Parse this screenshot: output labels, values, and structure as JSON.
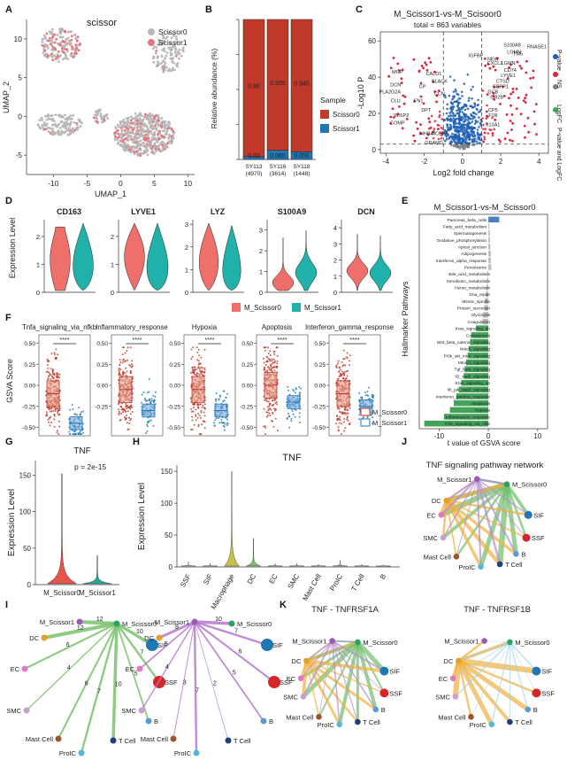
{
  "panel_labels": {
    "A": "A",
    "B": "B",
    "C": "C",
    "D": "D",
    "E": "E",
    "F": "F",
    "G": "G",
    "H": "H",
    "I": "I",
    "J": "J",
    "K": "K"
  },
  "colors": {
    "scissor0": "#b8b8b8",
    "scissor1": "#e8737b",
    "red": "#c0392b",
    "blue": "#1f78b4",
    "m0": "#ef6f6a",
    "m1": "#20b2aa",
    "green": "#44a35a",
    "grey": "#bdbdbd"
  },
  "chart_data": [
    {
      "id": "A",
      "type": "scatter",
      "title": "scissor",
      "xlabel": "UMAP_1",
      "ylabel": "UMAP_2",
      "xticks": [
        "-10",
        "-5",
        "0",
        "5",
        "10"
      ],
      "yticks": [
        "10",
        "5",
        "0",
        "-5"
      ],
      "xlim": [
        -14,
        11
      ],
      "ylim": [
        -7.5,
        12.5
      ],
      "legend": [
        "Scissor0",
        "Scissor1"
      ],
      "clusters": [
        {
          "name": "top",
          "cx": -9,
          "cy": 9.2,
          "rx": 3,
          "ry": 2.2,
          "pos": 0.4
        },
        {
          "name": "topright",
          "cx": 7,
          "cy": 8.2,
          "rx": 2.4,
          "ry": 2.6,
          "pos": 0.05
        },
        {
          "name": "left",
          "cx": -9,
          "cy": -1,
          "rx": 3.3,
          "ry": 1.5,
          "pos": 0.02
        },
        {
          "name": "center",
          "cx": -3,
          "cy": 0,
          "rx": 1.2,
          "ry": 0.9,
          "pos": 0.1
        },
        {
          "name": "main",
          "cx": 3.5,
          "cy": -2.3,
          "rx": 4.5,
          "ry": 2.8,
          "pos": 0.22
        }
      ]
    },
    {
      "id": "B",
      "type": "bar",
      "ylabel": "Relative abundance (%)",
      "categories": [
        "SY113\n(4970)",
        "SY116\n(3614)",
        "SY118\n(1448)"
      ],
      "series": [
        {
          "name": "Scissor0",
          "values": [
            0.98,
            0.935,
            0.945
          ]
        },
        {
          "name": "Scissor1",
          "values": [
            0.02,
            0.065,
            0.055
          ]
        }
      ],
      "value_labels": [
        [
          "0.98",
          "0.02"
        ],
        [
          "0.935",
          "0.065"
        ],
        [
          "0.945",
          "0.055"
        ]
      ],
      "legend_title": "Sample",
      "legend": [
        "Scissor0",
        "Scissor1"
      ],
      "ylim": [
        0,
        1
      ]
    },
    {
      "id": "C",
      "type": "scatter",
      "title": "M_Scissor1-vs-M_Scisoor0",
      "subtitle": "total = 863 variables",
      "xlabel": "Log2 fold change",
      "ylabel": "-Log10 P",
      "xticks": [
        "-4",
        "-2",
        "0",
        "2",
        "4"
      ],
      "yticks": [
        "0",
        "20",
        "40",
        "60"
      ],
      "xlim": [
        -4.3,
        4.5
      ],
      "ylim": [
        -2,
        65
      ],
      "vlines": [
        -1,
        1
      ],
      "hline": 3,
      "legend": [
        "NS",
        "P-value",
        "LogFC",
        "P-value and LogFC"
      ],
      "labels": [
        {
          "text": "S100A8",
          "x": 2.6,
          "y": 57
        },
        {
          "text": "RNASE1",
          "x": 3.9,
          "y": 56
        },
        {
          "text": "LGMN",
          "x": 2.7,
          "y": 53
        },
        {
          "text": "TM5",
          "x": 2.9,
          "y": 52
        },
        {
          "text": "IGFBP",
          "x": 0.7,
          "y": 51
        },
        {
          "text": "NEW",
          "x": 1.6,
          "y": 49
        },
        {
          "text": "CXCL2",
          "x": 1.7,
          "y": 47
        },
        {
          "text": "LGMN",
          "x": 2.4,
          "y": 47
        },
        {
          "text": "CD74",
          "x": 2.5,
          "y": 43
        },
        {
          "text": "LYVE1",
          "x": 2.4,
          "y": 40
        },
        {
          "text": "CTSD",
          "x": 2.1,
          "y": 37
        },
        {
          "text": "SEPP1",
          "x": 2.0,
          "y": 34
        },
        {
          "text": "GCB",
          "x": 1.6,
          "y": 31
        },
        {
          "text": "CR2B",
          "x": 1.8,
          "y": 28
        },
        {
          "text": "CP5",
          "x": 1.6,
          "y": 21
        },
        {
          "text": "F1R",
          "x": 1.6,
          "y": 18
        },
        {
          "text": "613A1",
          "x": 1.6,
          "y": 13
        },
        {
          "text": "MGP",
          "x": -3.4,
          "y": 42
        },
        {
          "text": "CALD1",
          "x": -1.5,
          "y": 41
        },
        {
          "text": "BLACK",
          "x": -1.2,
          "y": 37
        },
        {
          "text": "DCN",
          "x": -3.5,
          "y": 35
        },
        {
          "text": "CP",
          "x": -2.1,
          "y": 34
        },
        {
          "text": "PLA2G2A",
          "x": -3.8,
          "y": 31
        },
        {
          "text": "CLU",
          "x": -3.5,
          "y": 26
        },
        {
          "text": "FN1",
          "x": -2.3,
          "y": 26
        },
        {
          "text": "CCN",
          "x": -1.2,
          "y": 30
        },
        {
          "text": "DPT",
          "x": -1.9,
          "y": 21
        },
        {
          "text": "WISP2",
          "x": -3.2,
          "y": 18
        },
        {
          "text": "COMP",
          "x": -3.4,
          "y": 14
        },
        {
          "text": "INHBA",
          "x": -1.9,
          "y": 8
        },
        {
          "text": "MCEP1",
          "x": -1.2,
          "y": 8
        },
        {
          "text": "GRAMD",
          "x": -1.5,
          "y": 3
        }
      ]
    },
    {
      "id": "D",
      "type": "violin",
      "ylabel": "Expression Level",
      "genes": [
        "CD163",
        "LYVE1",
        "LYZ",
        "S100A9",
        "DCN"
      ],
      "yticks": [
        [
          "0",
          "1",
          "2"
        ],
        [
          "0",
          "1",
          "2"
        ],
        [
          "0",
          "1",
          "2",
          "3"
        ],
        [
          "0",
          "1",
          "2",
          "3"
        ],
        [
          "0",
          "1",
          "2",
          "3",
          "4"
        ]
      ],
      "ymax": [
        2.6,
        2.6,
        3.2,
        3.5,
        4.5
      ],
      "legend": [
        "M_Scissor0",
        "M_Scissor1"
      ]
    },
    {
      "id": "E",
      "type": "bar",
      "orientation": "horizontal",
      "title": "M_Scissor1-vs-M_Scissor0",
      "xlabel": "t value of GSVA score",
      "ylabel": "Hallmarker Pathways",
      "xticks": [
        "-10",
        "0",
        "10"
      ],
      "xlim": [
        -14,
        12
      ],
      "categories": [
        "Pancreas_beta_cells",
        "Fatty_acid_metabolism",
        "Spermatogenesis",
        "Oxidative_phosphorylation",
        "Apical_junction",
        "Adipogenesis",
        "Interferon_alpha_response",
        "Peroxisome",
        "Bile_acid_metabolism",
        "Xenobiotic_metabolism",
        "Heme_metabolism",
        "Dna_repair",
        "Mitotic_spindle",
        "Protein_secretion",
        "Glycolysis",
        "Coagulation",
        "Kras_signaling_dn",
        "Complement",
        "Wnt_beta_catenin_signaling",
        "Notch_signaling",
        "PI3k_akt_mtor_signaling",
        "Mtorc1_signaling",
        "Tgf_beta_signaling",
        "Il2_stat5_signaling",
        "Kras_signaling_up",
        "Il6_jak_stat3_signaling",
        "Interferon_gamma_response",
        "Apoptosis",
        "Hypoxia",
        "Inflammatory_response",
        "Tnfa_signaling_via_nfkb"
      ],
      "values": [
        2.2,
        0.2,
        0.3,
        0.3,
        0.4,
        0.5,
        0.5,
        0.6,
        -0.2,
        -0.3,
        -0.4,
        -0.5,
        -0.7,
        -0.8,
        -1.0,
        -1.2,
        -2.5,
        -3.5,
        -3.7,
        -4.0,
        -4.2,
        -4.5,
        -4.8,
        -5.0,
        -5.5,
        -6.0,
        -6.5,
        -7.0,
        -7.8,
        -9.0,
        -13.0
      ]
    },
    {
      "id": "F",
      "type": "box",
      "ylabel": "GSVA Score",
      "panels": [
        "Tnfa_signaling_via_nfkb",
        "Inflammatory_response",
        "Hypoxia",
        "Apoptosis",
        "Interferon_gamma_response"
      ],
      "significance": "****",
      "yticks": [
        [
          "0.50",
          "0.25",
          "0.00",
          "-0.25",
          "-0.50"
        ],
        [
          "0.50",
          "0.25",
          "0.00",
          "-0.25"
        ],
        [
          "0.50",
          "0.25",
          "0.00",
          "-0.25",
          "-0.50"
        ],
        [
          "0.50",
          "0.25",
          "0.00",
          "-0.25",
          "-0.50"
        ],
        [
          "0.50",
          "0.25",
          "0.00",
          "-0.25",
          "-0.50"
        ]
      ],
      "medians": [
        [
          -0.1,
          -0.45
        ],
        [
          -0.05,
          -0.3
        ],
        [
          -0.05,
          -0.3
        ],
        [
          0.0,
          -0.2
        ],
        [
          -0.1,
          -0.25
        ]
      ],
      "legend": [
        "M_Scissor0",
        "M_Scissor1"
      ]
    },
    {
      "id": "G",
      "type": "violin",
      "title": "TNF",
      "annotation": "p = 2e-15",
      "ylabel": "Expression Level",
      "categories": [
        "M_Scissor0",
        "M_Scissor1"
      ],
      "yticks": [
        "0",
        "50",
        "100",
        "150"
      ],
      "ylim": [
        0,
        170
      ],
      "max_values": [
        152,
        40
      ]
    },
    {
      "id": "H",
      "type": "violin",
      "title": "TNF",
      "ylabel": "Expression Level",
      "categories": [
        "SSF",
        "SIF",
        "Macrophage",
        "DC",
        "EC",
        "SMC",
        "Mast Cell",
        "ProIC",
        "T Cell",
        "B"
      ],
      "yticks": [
        "0",
        "50",
        "100",
        "150"
      ],
      "ylim": [
        0,
        160
      ],
      "max_values": [
        8,
        5,
        150,
        45,
        5,
        5,
        4,
        10,
        4,
        3
      ],
      "colors": [
        "#f4a3a0",
        "#e0b060",
        "#c9c04a",
        "#7fc06a",
        "#4cb5a0",
        "#4cb8d8",
        "#8aa8e8",
        "#b98ae0",
        "#e088c8",
        "#f08cb0"
      ]
    },
    {
      "id": "I",
      "type": "network",
      "nodes": [
        "M_Scissor1",
        "M_Scissor0",
        "DC",
        "SIF",
        "SSF",
        "EC",
        "B",
        "SMC",
        "Mast Cell",
        "T Cell",
        "ProIC"
      ],
      "left_weights": [
        "12",
        "12",
        "10",
        "7",
        "6",
        "5",
        "4",
        "6",
        "10",
        "7",
        "8",
        "5"
      ],
      "right_weights": [
        "10",
        "9",
        "7",
        "6",
        "5",
        "5",
        "4",
        "3",
        "2",
        "7",
        "7",
        "6"
      ]
    },
    {
      "id": "J",
      "type": "network",
      "title": "TNF signaling pathway network",
      "nodes": [
        "M_Scissor1",
        "M_Scissor0",
        "DC",
        "SIF",
        "SSF",
        "EC",
        "B",
        "SMC",
        "Mast Cell",
        "T Cell",
        "ProIC"
      ]
    },
    {
      "id": "K",
      "type": "network",
      "titles": [
        "TNF - TNFRSF1A",
        "TNF - TNFRSF1B"
      ],
      "nodes": [
        "M_Scissor1",
        "M_Scissor0",
        "DC",
        "SIF",
        "SSF",
        "EC",
        "B",
        "SMC",
        "Mast Cell",
        "T Cell",
        "ProIC"
      ]
    }
  ]
}
